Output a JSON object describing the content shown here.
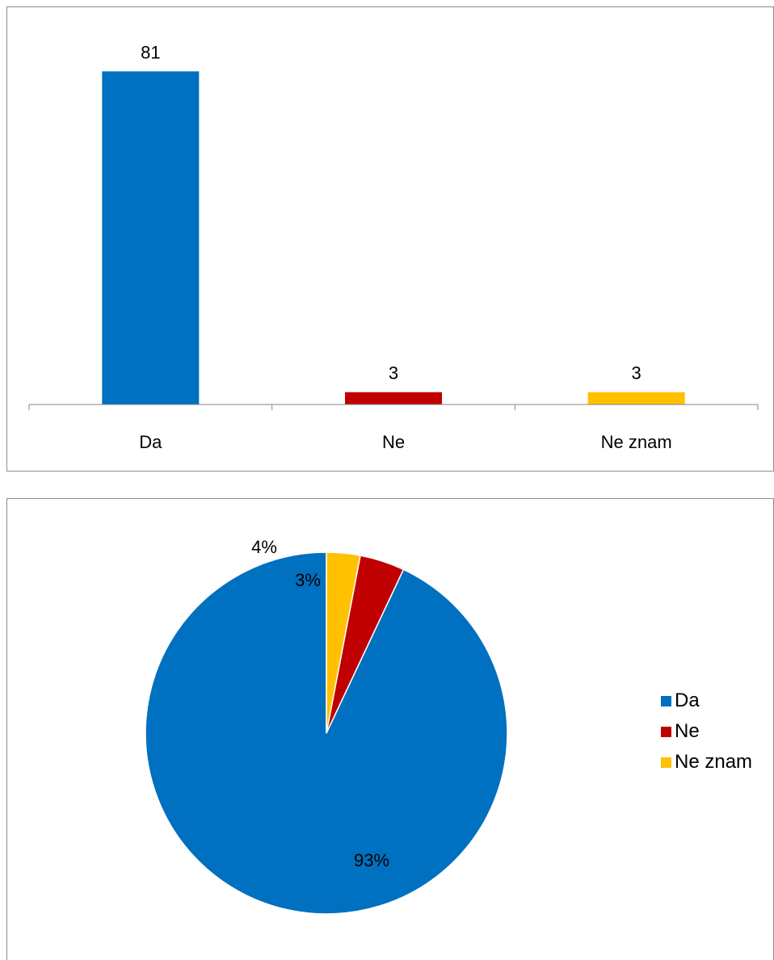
{
  "chart_data": [
    {
      "type": "bar",
      "categories": [
        "Da",
        "Ne",
        "Ne znam"
      ],
      "values": [
        81,
        3,
        3
      ],
      "data_labels": [
        "81",
        "3",
        "3"
      ],
      "colors": [
        "#0070c0",
        "#c00000",
        "#ffc000"
      ],
      "ylim": [
        0,
        85
      ],
      "grid": false,
      "legend": "none"
    },
    {
      "type": "pie",
      "labels": [
        "Da",
        "Ne",
        "Ne znam"
      ],
      "values": [
        93,
        4,
        3
      ],
      "data_labels": [
        "93%",
        "4%",
        "3%"
      ],
      "colors": [
        "#0070c0",
        "#c00000",
        "#ffc000"
      ],
      "legend": "right",
      "legend_entries": [
        "Da",
        "Ne",
        "Ne znam"
      ]
    }
  ]
}
